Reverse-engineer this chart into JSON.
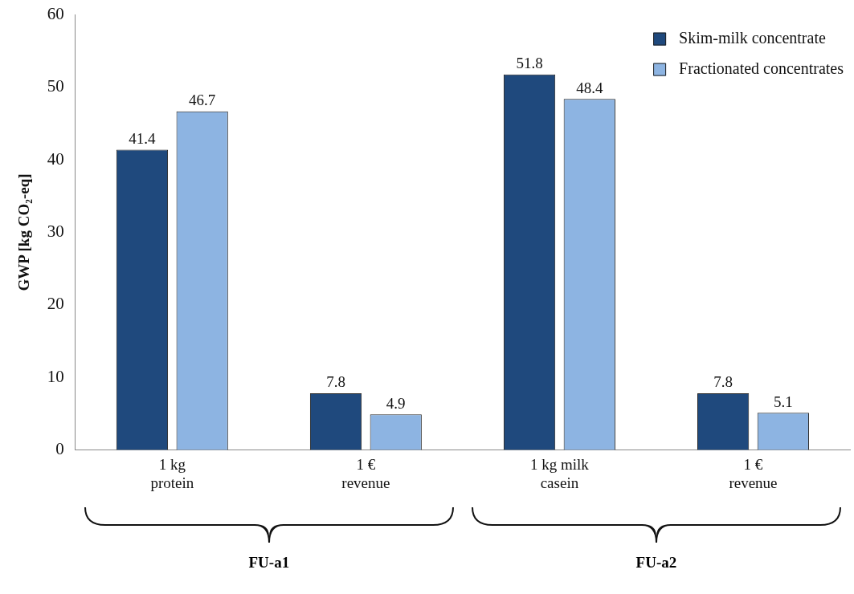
{
  "chart_data": {
    "type": "bar",
    "ylabel": "GWP [kg CO₂-eq]",
    "categories": [
      "1 kg\nprotein",
      "1 €\nrevenue",
      "1 kg milk\ncasein",
      "1 €\nrevenue"
    ],
    "series": [
      {
        "name": "Skim-milk concentrate",
        "color": "#1f497d",
        "values": [
          41.4,
          7.8,
          51.8,
          7.8
        ]
      },
      {
        "name": "Fractionated concentrates",
        "color": "#8db4e2",
        "values": [
          46.7,
          4.9,
          48.4,
          5.1
        ]
      }
    ],
    "annotations": [
      "FU-a1",
      "FU-a2"
    ],
    "ylim": [
      0,
      60
    ],
    "yticks": [
      0,
      10,
      20,
      30,
      40,
      50,
      60
    ],
    "data_labels": true,
    "grid": false,
    "legend": "top right"
  }
}
